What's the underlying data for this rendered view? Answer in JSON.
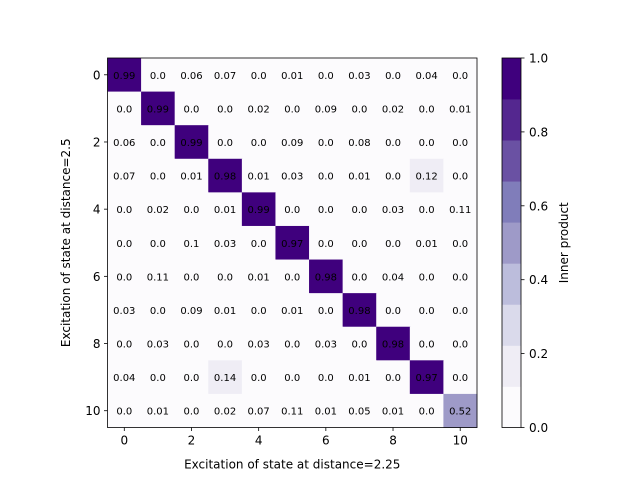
{
  "chart_data": {
    "type": "heatmap",
    "xlabel": "Excitation of state at distance=2.25",
    "ylabel": "Excitation of state at distance=2.5",
    "x_ticks": [
      "0",
      "2",
      "4",
      "6",
      "8",
      "10"
    ],
    "y_ticks": [
      "0",
      "2",
      "4",
      "6",
      "8",
      "10"
    ],
    "colorbar": {
      "label": "Inner product",
      "ticks": [
        "0.0",
        "0.2",
        "0.4",
        "0.6",
        "0.8",
        "1.0"
      ],
      "range": [
        0,
        1
      ],
      "levels": 9,
      "colormap": "Purples"
    },
    "values": [
      [
        "0.99",
        "0.0",
        "0.06",
        "0.07",
        "0.0",
        "0.01",
        "0.0",
        "0.03",
        "0.0",
        "0.04",
        "0.0"
      ],
      [
        "0.0",
        "0.99",
        "0.0",
        "0.0",
        "0.02",
        "0.0",
        "0.09",
        "0.0",
        "0.02",
        "0.0",
        "0.01"
      ],
      [
        "0.06",
        "0.0",
        "0.99",
        "0.0",
        "0.0",
        "0.09",
        "0.0",
        "0.08",
        "0.0",
        "0.0",
        "0.0"
      ],
      [
        "0.07",
        "0.0",
        "0.01",
        "0.98",
        "0.01",
        "0.03",
        "0.0",
        "0.01",
        "0.0",
        "0.12",
        "0.0"
      ],
      [
        "0.0",
        "0.02",
        "0.0",
        "0.01",
        "0.99",
        "0.0",
        "0.0",
        "0.0",
        "0.03",
        "0.0",
        "0.11"
      ],
      [
        "0.0",
        "0.0",
        "0.1",
        "0.03",
        "0.0",
        "0.97",
        "0.0",
        "0.0",
        "0.0",
        "0.01",
        "0.0"
      ],
      [
        "0.0",
        "0.11",
        "0.0",
        "0.0",
        "0.01",
        "0.0",
        "0.98",
        "0.0",
        "0.04",
        "0.0",
        "0.0"
      ],
      [
        "0.03",
        "0.0",
        "0.09",
        "0.01",
        "0.0",
        "0.01",
        "0.0",
        "0.98",
        "0.0",
        "0.0",
        "0.0"
      ],
      [
        "0.0",
        "0.03",
        "0.0",
        "0.0",
        "0.03",
        "0.0",
        "0.03",
        "0.0",
        "0.98",
        "0.0",
        "0.0"
      ],
      [
        "0.04",
        "0.0",
        "0.0",
        "0.14",
        "0.0",
        "0.0",
        "0.0",
        "0.01",
        "0.0",
        "0.97",
        "0.0"
      ],
      [
        "0.0",
        "0.01",
        "0.0",
        "0.02",
        "0.07",
        "0.11",
        "0.01",
        "0.05",
        "0.01",
        "0.0",
        "0.52"
      ]
    ]
  }
}
